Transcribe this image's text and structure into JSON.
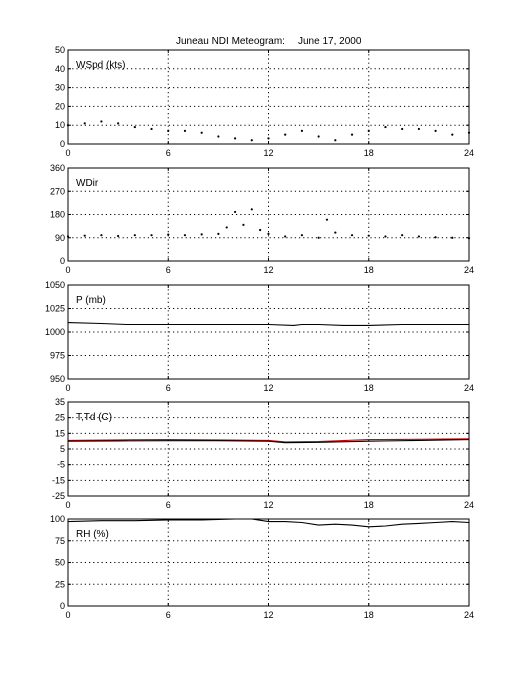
{
  "figure": {
    "title_left": "Juneau NDI Meteogram:",
    "title_right": "June 17, 2000"
  },
  "colors": {
    "axis": "#000000",
    "grid": "#000000",
    "data": "#000000",
    "dewpoint": "#cc0000"
  },
  "chart_data": [
    {
      "type": "scatter",
      "label": "WSpd (kts)",
      "xlim": [
        0,
        24
      ],
      "xticks": [
        0,
        6,
        12,
        18,
        24
      ],
      "ylim": [
        0,
        50
      ],
      "yticks": [
        0,
        10,
        20,
        30,
        40,
        50
      ],
      "grid": true,
      "series": [
        {
          "x": [
            0,
            1,
            2,
            3,
            4,
            5,
            6,
            7,
            8,
            9,
            10,
            11,
            12,
            13,
            14,
            15,
            16,
            17,
            18,
            19,
            20,
            21,
            22,
            23,
            24
          ],
          "y": [
            10,
            11,
            12,
            11,
            9,
            8,
            7,
            7,
            6,
            4,
            3,
            2,
            3,
            5,
            7,
            4,
            2,
            5,
            7,
            9,
            8,
            8,
            7,
            5,
            6
          ]
        }
      ]
    },
    {
      "type": "scatter",
      "label": "WDir",
      "xlim": [
        0,
        24
      ],
      "xticks": [
        0,
        6,
        12,
        18,
        24
      ],
      "ylim": [
        0,
        360
      ],
      "yticks": [
        0,
        90,
        180,
        270,
        360
      ],
      "grid": true,
      "series": [
        {
          "x": [
            0,
            1,
            2,
            3,
            4,
            5,
            6,
            7,
            8,
            9,
            9.5,
            10,
            10.5,
            11,
            11.5,
            12,
            13,
            14,
            15,
            15.5,
            16,
            17,
            18,
            19,
            20,
            21,
            22,
            23,
            24
          ],
          "y": [
            95,
            98,
            100,
            97,
            100,
            100,
            102,
            100,
            103,
            105,
            130,
            190,
            140,
            200,
            120,
            105,
            95,
            100,
            90,
            160,
            110,
            100,
            98,
            95,
            100,
            95,
            92,
            90,
            88
          ]
        }
      ]
    },
    {
      "type": "line",
      "label": "P (mb)",
      "xlim": [
        0,
        24
      ],
      "xticks": [
        0,
        6,
        12,
        18,
        24
      ],
      "ylim": [
        950,
        1050
      ],
      "yticks": [
        950,
        975,
        1000,
        1025,
        1050
      ],
      "grid": true,
      "series": [
        {
          "x": [
            0,
            2,
            3.5,
            6,
            9,
            12,
            13.5,
            14,
            15,
            16.5,
            17,
            18,
            20,
            24
          ],
          "y": [
            1010,
            1009,
            1008,
            1008,
            1008,
            1008,
            1007,
            1008,
            1008,
            1007,
            1007,
            1007,
            1008,
            1008
          ]
        }
      ]
    },
    {
      "type": "line",
      "label": "T,Td (C)",
      "xlim": [
        0,
        24
      ],
      "xticks": [
        0,
        6,
        12,
        18,
        24
      ],
      "ylim": [
        -25,
        35
      ],
      "yticks": [
        -25,
        -15,
        -5,
        5,
        15,
        25,
        35
      ],
      "grid": true,
      "series": [
        {
          "x": [
            0,
            3,
            6,
            9,
            12,
            13,
            15,
            18,
            21,
            24
          ],
          "y": [
            10.5,
            10.8,
            11,
            10.8,
            10.5,
            9.5,
            9.8,
            11,
            11.2,
            11.5
          ]
        },
        {
          "x": [
            0,
            3,
            6,
            9,
            12,
            13,
            15,
            18,
            21,
            24
          ],
          "y": [
            10,
            10.2,
            10.3,
            10.3,
            10,
            9,
            9.3,
            10,
            10.5,
            11
          ]
        }
      ]
    },
    {
      "type": "line",
      "label": "RH (%)",
      "xlim": [
        0,
        24
      ],
      "xticks": [
        0,
        6,
        12,
        18,
        24
      ],
      "ylim": [
        0,
        100
      ],
      "yticks": [
        0,
        25,
        50,
        75,
        100
      ],
      "grid": true,
      "series": [
        {
          "x": [
            0,
            2,
            4,
            6,
            8,
            10,
            11,
            12,
            13,
            14,
            15,
            16,
            17,
            18,
            19,
            20,
            21,
            22,
            23,
            24
          ],
          "y": [
            97,
            98,
            98,
            99,
            99,
            100,
            100,
            97,
            97,
            96,
            93,
            94,
            93,
            91,
            92,
            94,
            95,
            96,
            97,
            96
          ]
        }
      ]
    }
  ]
}
